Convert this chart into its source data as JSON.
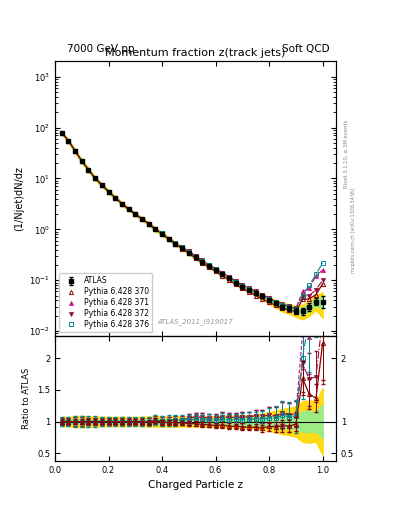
{
  "title_main": "Momentum fraction z(track jets)",
  "header_left": "7000 GeV pp",
  "header_right": "Soft QCD",
  "watermark": "ATLAS_2011_I919017",
  "ylabel_main": "(1/Njet)dN/dz",
  "ylabel_ratio": "Ratio to ATLAS",
  "xlabel": "Charged Particle z",
  "right_label": "Rivet 3.1.10, ≥ 3M events",
  "right_label2": "mcplots.cern.ch [arXiv:1306.3436]",
  "ylim_main": [
    0.008,
    2000
  ],
  "ylim_ratio": [
    0.38,
    2.35
  ],
  "xlim": [
    0.0,
    1.05
  ],
  "z_values": [
    0.025,
    0.05,
    0.075,
    0.1,
    0.125,
    0.15,
    0.175,
    0.2,
    0.225,
    0.25,
    0.275,
    0.3,
    0.325,
    0.35,
    0.375,
    0.4,
    0.425,
    0.45,
    0.475,
    0.5,
    0.525,
    0.55,
    0.575,
    0.6,
    0.625,
    0.65,
    0.675,
    0.7,
    0.725,
    0.75,
    0.775,
    0.8,
    0.825,
    0.85,
    0.875,
    0.9,
    0.925,
    0.95,
    0.975,
    1.0
  ],
  "atlas_y": [
    80,
    55,
    35,
    22,
    15,
    10,
    7.5,
    5.5,
    4.2,
    3.2,
    2.5,
    2.0,
    1.6,
    1.3,
    1.0,
    0.82,
    0.65,
    0.52,
    0.43,
    0.35,
    0.28,
    0.23,
    0.19,
    0.16,
    0.13,
    0.11,
    0.09,
    0.075,
    0.065,
    0.055,
    0.048,
    0.04,
    0.035,
    0.03,
    0.028,
    0.025,
    0.025,
    0.03,
    0.038,
    0.038
  ],
  "atlas_err": [
    3,
    2,
    1.5,
    1.0,
    0.6,
    0.4,
    0.28,
    0.2,
    0.15,
    0.12,
    0.09,
    0.07,
    0.06,
    0.05,
    0.04,
    0.033,
    0.026,
    0.021,
    0.017,
    0.014,
    0.011,
    0.009,
    0.008,
    0.007,
    0.006,
    0.005,
    0.004,
    0.004,
    0.003,
    0.003,
    0.003,
    0.003,
    0.003,
    0.003,
    0.003,
    0.003,
    0.004,
    0.005,
    0.006,
    0.01
  ],
  "py370_y": [
    80,
    55,
    35,
    22,
    15,
    10,
    7.5,
    5.5,
    4.2,
    3.2,
    2.5,
    2.0,
    1.6,
    1.28,
    1.01,
    0.81,
    0.64,
    0.51,
    0.42,
    0.34,
    0.27,
    0.22,
    0.18,
    0.15,
    0.123,
    0.102,
    0.083,
    0.069,
    0.059,
    0.05,
    0.043,
    0.037,
    0.032,
    0.028,
    0.026,
    0.024,
    0.042,
    0.043,
    0.052,
    0.085
  ],
  "py371_y": [
    80,
    55,
    35,
    22,
    15,
    10,
    7.5,
    5.5,
    4.2,
    3.2,
    2.5,
    2.0,
    1.6,
    1.3,
    1.02,
    0.83,
    0.66,
    0.53,
    0.44,
    0.37,
    0.3,
    0.245,
    0.2,
    0.168,
    0.14,
    0.117,
    0.096,
    0.08,
    0.07,
    0.06,
    0.052,
    0.044,
    0.038,
    0.034,
    0.031,
    0.028,
    0.06,
    0.07,
    0.12,
    0.16
  ],
  "py372_y": [
    80,
    55,
    35,
    22,
    15,
    10,
    7.5,
    5.5,
    4.2,
    3.2,
    2.5,
    2.0,
    1.6,
    1.3,
    1.02,
    0.83,
    0.66,
    0.53,
    0.44,
    0.37,
    0.3,
    0.245,
    0.2,
    0.168,
    0.14,
    0.117,
    0.096,
    0.08,
    0.07,
    0.06,
    0.052,
    0.044,
    0.038,
    0.034,
    0.031,
    0.028,
    0.048,
    0.05,
    0.065,
    0.1
  ],
  "py376_y": [
    80,
    55,
    35,
    22,
    15,
    10,
    7.5,
    5.5,
    4.2,
    3.2,
    2.5,
    2.0,
    1.6,
    1.3,
    1.02,
    0.83,
    0.66,
    0.53,
    0.44,
    0.36,
    0.29,
    0.235,
    0.195,
    0.163,
    0.135,
    0.113,
    0.093,
    0.077,
    0.068,
    0.057,
    0.05,
    0.042,
    0.037,
    0.033,
    0.03,
    0.027,
    0.05,
    0.08,
    0.13,
    0.22
  ],
  "color_atlas": "#000000",
  "color_370": "#8B0000",
  "color_371": "#C71585",
  "color_372": "#8B1040",
  "color_376": "#008B8B",
  "band_yellow": "#FFD700",
  "band_green": "#90EE90",
  "legend_labels": [
    "ATLAS",
    "Pythia 6.428 370",
    "Pythia 6.428 371",
    "Pythia 6.428 372",
    "Pythia 6.428 376"
  ]
}
